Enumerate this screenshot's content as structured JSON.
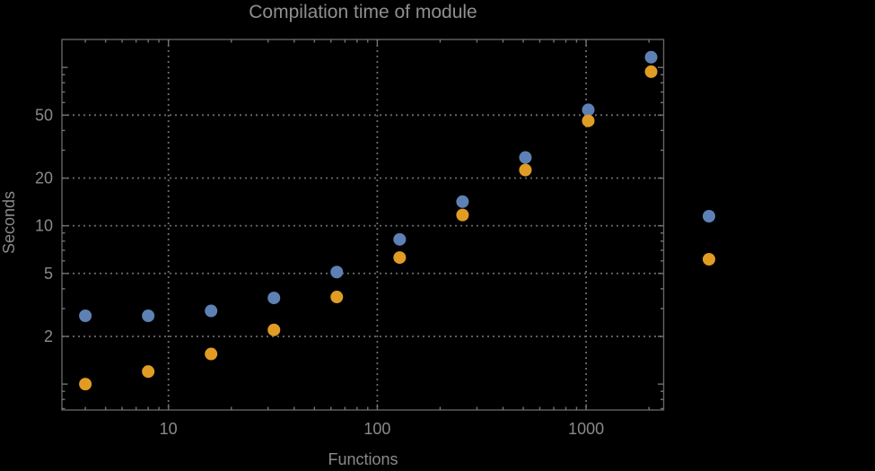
{
  "title": "Compilation time of module",
  "axes": {
    "x_label": "Functions",
    "y_label": "Seconds",
    "x_tick_labels": [
      "10",
      "100",
      "1000"
    ],
    "y_tick_labels": [
      "2",
      "5",
      "10",
      "20",
      "50"
    ]
  },
  "colors": {
    "background": "#000000",
    "frame": "#636363",
    "grid": "#6b6b6b",
    "tick": "#737373",
    "text": "#8a8a8a",
    "series1": "#5e81b5",
    "series2": "#e19c24"
  },
  "legend": {
    "markers": [
      {
        "name": "series-1-blue",
        "color": "#5e81b5",
        "label": ""
      },
      {
        "name": "series-2-orange",
        "color": "#e19c24",
        "label": ""
      }
    ]
  },
  "chart_data": {
    "type": "scatter",
    "title": "Compilation time of module",
    "xlabel": "Functions",
    "ylabel": "Seconds",
    "x_scale": "log",
    "y_scale": "log",
    "grid": true,
    "legend_position": "right-outside-unlabeled",
    "x": [
      4,
      8,
      16,
      32,
      64,
      128,
      256,
      512,
      1024,
      2048
    ],
    "series": [
      {
        "name": "series-1-blue",
        "color": "#5e81b5",
        "values": [
          2.7,
          2.7,
          2.9,
          3.5,
          5.1,
          8.2,
          14.2,
          27,
          54,
          116
        ]
      },
      {
        "name": "series-2-orange",
        "color": "#e19c24",
        "values": [
          1.0,
          1.2,
          1.55,
          2.2,
          3.55,
          6.3,
          11.7,
          22.5,
          46,
          94
        ]
      }
    ],
    "x_major_ticks": [
      10,
      100,
      1000
    ],
    "y_major_ticks": [
      2,
      5,
      10,
      20,
      50
    ],
    "y_unlabeled_major_ticks": [
      1,
      100
    ],
    "xlim": [
      3.1,
      2350
    ],
    "ylim": [
      0.69,
      150
    ]
  }
}
